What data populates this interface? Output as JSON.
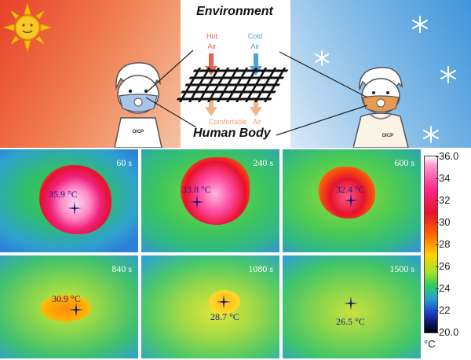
{
  "top": {
    "environment_label": "Environment",
    "human_body_label": "Human Body",
    "hot_air_label": [
      "Hot",
      "Air"
    ],
    "cold_air_label": [
      "Cold",
      "Air"
    ],
    "comfortable_label": "Comfortable",
    "comfortable_air_label": "Air",
    "shirt_logo_left": "DICP",
    "shirt_logo_right": "DICP",
    "colors": {
      "hot_arrow": "#e8634a",
      "cold_arrow": "#4aa3e0",
      "comfortable": "#e8a271"
    }
  },
  "thermal_panels": [
    {
      "time": "60 s",
      "temperature": "35.9 °C"
    },
    {
      "time": "240 s",
      "temperature": "33.8 °C"
    },
    {
      "time": "600 s",
      "temperature": "32.4 °C"
    },
    {
      "time": "840 s",
      "temperature": "30.9 °C"
    },
    {
      "time": "1080 s",
      "temperature": "28.7 °C"
    },
    {
      "time": "1500 s",
      "temperature": "26.5 °C"
    }
  ],
  "colorbar": {
    "ticks": [
      "36.0",
      "34",
      "32",
      "30",
      "28",
      "26",
      "24",
      "22",
      "20.0"
    ],
    "unit": "°C",
    "min": 20.0,
    "max": 36.0
  }
}
